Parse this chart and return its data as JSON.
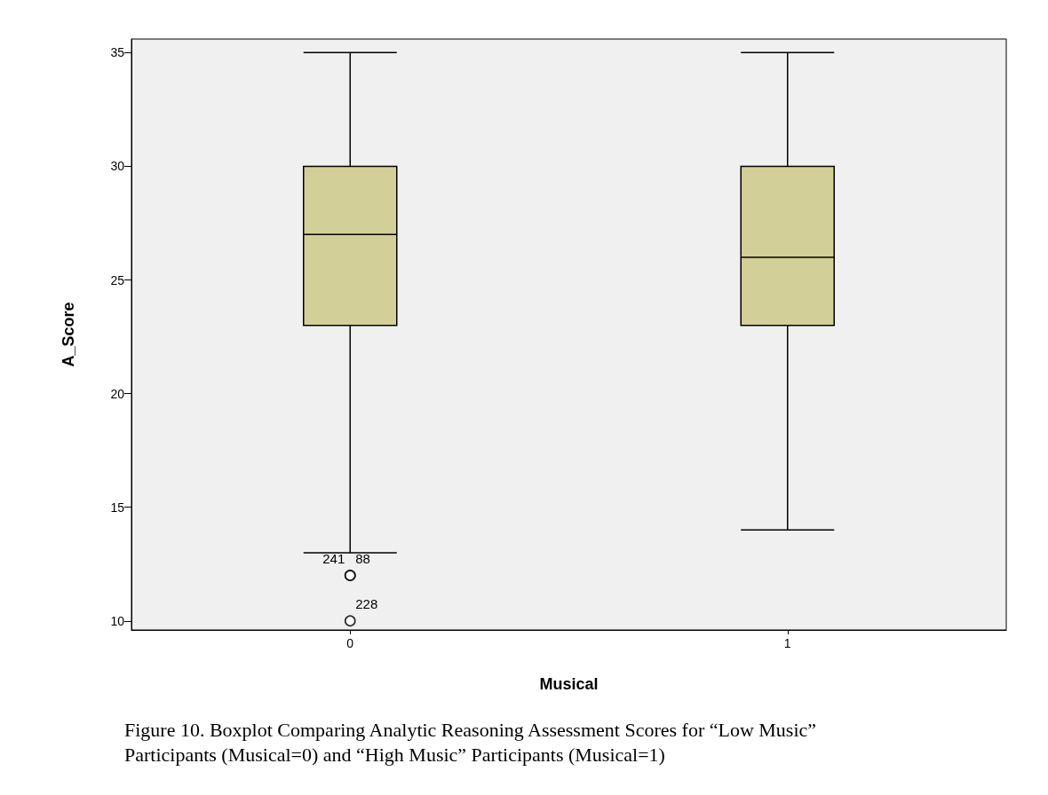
{
  "chart_data": {
    "type": "box",
    "xlabel": "Musical",
    "ylabel": "A_Score",
    "categories": [
      "0",
      "1"
    ],
    "boxes": [
      {
        "low": 13,
        "q1": 23,
        "median": 27,
        "q3": 30,
        "high": 35,
        "outliers": [
          12,
          12,
          10
        ]
      },
      {
        "low": 14,
        "q1": 23,
        "median": 26,
        "q3": 30,
        "high": 35
      }
    ],
    "color": "#d3cf98",
    "ylim": [
      9.6,
      35.6
    ],
    "yticks": [
      10,
      15,
      20,
      25,
      30,
      35
    ],
    "grid": false,
    "annotations": [
      "241",
      "88",
      "228",
      "Figure 10. Boxplot Comparing Analytic Reasoning Assessment Scores for “Low Music” Participants (Musical=0) and “High Music” Participants (Musical=1)"
    ]
  }
}
